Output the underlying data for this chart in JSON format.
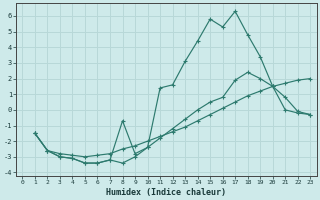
{
  "xlabel": "Humidex (Indice chaleur)",
  "bg_color": "#ceeaea",
  "grid_color": "#b8d8d8",
  "line_color": "#2d7a6e",
  "xlim": [
    -0.5,
    23.5
  ],
  "ylim": [
    -4.2,
    6.8
  ],
  "xticks": [
    0,
    1,
    2,
    3,
    4,
    5,
    6,
    7,
    8,
    9,
    10,
    11,
    12,
    13,
    14,
    15,
    16,
    17,
    18,
    19,
    20,
    21,
    22,
    23
  ],
  "yticks": [
    -4,
    -3,
    -2,
    -1,
    0,
    1,
    2,
    3,
    4,
    5,
    6
  ],
  "series1_x": [
    1,
    2,
    3,
    4,
    5,
    6,
    7,
    8,
    9,
    10,
    11,
    12,
    13,
    14,
    15,
    16,
    17,
    18,
    19,
    20,
    21,
    22,
    23
  ],
  "series1_y": [
    -1.5,
    -2.6,
    -3.0,
    -3.1,
    -3.4,
    -3.4,
    -3.2,
    -0.7,
    -2.8,
    -2.4,
    1.4,
    1.6,
    3.1,
    4.4,
    5.8,
    5.3,
    6.3,
    4.8,
    3.4,
    1.5,
    0.0,
    -0.2,
    -0.3
  ],
  "series2_x": [
    1,
    2,
    3,
    4,
    5,
    6,
    7,
    8,
    9,
    10,
    11,
    12,
    13,
    14,
    15,
    16,
    17,
    18,
    19,
    20,
    21,
    22,
    23
  ],
  "series2_y": [
    -1.5,
    -2.6,
    -2.8,
    -2.9,
    -3.0,
    -2.9,
    -2.8,
    -2.5,
    -2.3,
    -2.0,
    -1.7,
    -1.4,
    -1.1,
    -0.7,
    -0.3,
    0.1,
    0.5,
    0.9,
    1.2,
    1.5,
    1.7,
    1.9,
    2.0
  ],
  "series3_x": [
    1,
    2,
    3,
    4,
    5,
    6,
    7,
    8,
    9,
    10,
    11,
    12,
    13,
    14,
    15,
    16,
    17,
    18,
    19,
    20,
    21,
    22,
    23
  ],
  "series3_y": [
    -1.5,
    -2.6,
    -3.0,
    -3.1,
    -3.4,
    -3.4,
    -3.2,
    -3.4,
    -3.0,
    -2.4,
    -1.8,
    -1.2,
    -0.6,
    0.0,
    0.5,
    0.8,
    1.9,
    2.4,
    2.0,
    1.5,
    0.8,
    -0.1,
    -0.3
  ]
}
